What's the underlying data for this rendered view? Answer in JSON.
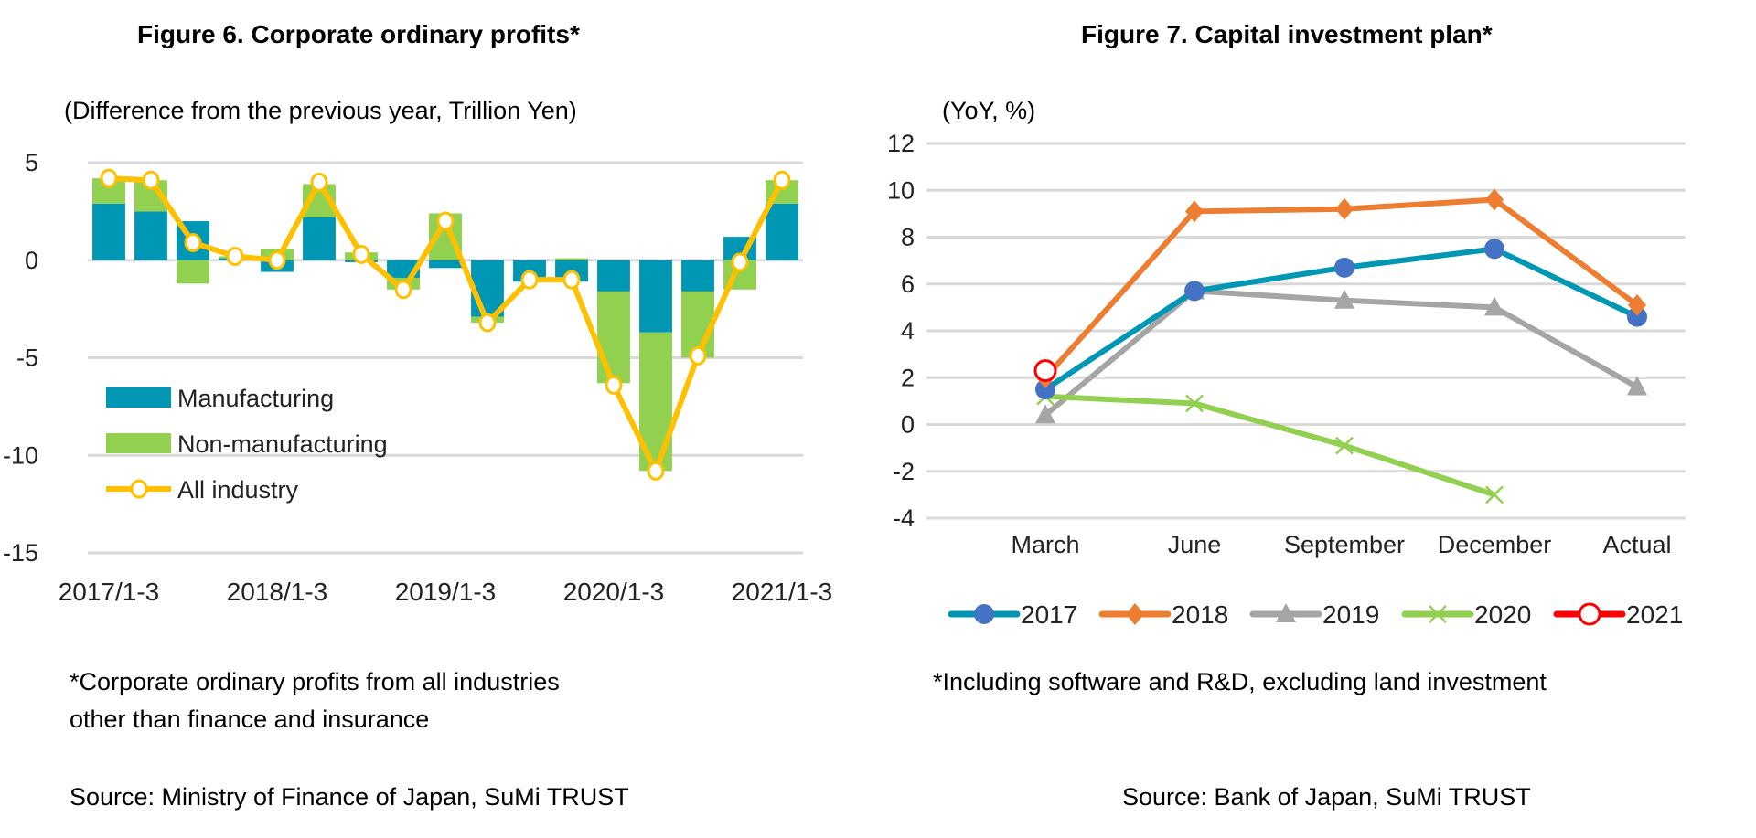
{
  "chart_data": [
    {
      "type": "bar",
      "stacked": true,
      "title": "Figure 6. Corporate ordinary profits*",
      "subtitle": "(Difference from the previous year, Trillion Yen)",
      "categories": [
        "2017/1-3",
        "2017/4-6",
        "2017/7-9",
        "2017/10-12",
        "2018/1-3",
        "2018/4-6",
        "2018/7-9",
        "2018/10-12",
        "2019/1-3",
        "2019/4-6",
        "2019/7-9",
        "2019/10-12",
        "2020/1-3",
        "2020/4-6",
        "2020/7-9",
        "2020/10-12",
        "2021/1-3"
      ],
      "tick_labels": [
        "2017/1-3",
        "2018/1-3",
        "2019/1-3",
        "2020/1-3",
        "2021/1-3"
      ],
      "ylim": [
        -15,
        5
      ],
      "yticks": [
        5,
        0,
        -5,
        -10,
        -15
      ],
      "grid": true,
      "legend_placement": "lower-left",
      "series": [
        {
          "name": "Manufacturing",
          "type": "bar",
          "color": "#0097B5",
          "values": [
            2.9,
            2.5,
            2.0,
            0.1,
            -0.6,
            2.2,
            -0.1,
            -0.9,
            -0.4,
            -2.9,
            -1.1,
            -1.1,
            -1.6,
            -3.7,
            -1.6,
            1.2,
            2.9
          ]
        },
        {
          "name": "Non-manufacturing",
          "type": "bar",
          "color": "#92D050",
          "values": [
            1.3,
            1.6,
            -1.2,
            0.1,
            0.6,
            1.7,
            0.4,
            -0.6,
            2.4,
            -0.3,
            0.0,
            0.1,
            -4.7,
            -7.1,
            -3.4,
            -1.5,
            1.2
          ]
        },
        {
          "name": "All industry",
          "type": "line",
          "color": "#FFC000",
          "values": [
            4.2,
            4.1,
            0.9,
            0.2,
            0.0,
            4.0,
            0.3,
            -1.5,
            2.0,
            -3.2,
            -1.0,
            -1.0,
            -6.4,
            -10.8,
            -4.9,
            -0.1,
            4.1
          ]
        }
      ],
      "footnote": [
        "*Corporate ordinary profits from all industries",
        "other than finance and insurance"
      ],
      "source": "Source: Ministry of Finance of Japan, SuMi TRUST"
    },
    {
      "type": "line",
      "title": "Figure 7. Capital investment plan*",
      "ylabel": "(YoY, %)",
      "categories": [
        "March",
        "June",
        "September",
        "December",
        "Actual"
      ],
      "ylim": [
        -4,
        12
      ],
      "yticks": [
        12,
        10,
        8,
        6,
        4,
        2,
        0,
        -2,
        -4
      ],
      "grid": true,
      "legend_placement": "bottom",
      "series": [
        {
          "name": "2017",
          "color": "#0097B5",
          "marker": "circle",
          "marker_color": "#4472C4",
          "values": [
            1.5,
            5.7,
            6.7,
            7.5,
            4.6
          ]
        },
        {
          "name": "2018",
          "color": "#ED7D31",
          "marker": "diamond",
          "values": [
            2.0,
            9.1,
            9.2,
            9.6,
            5.1
          ]
        },
        {
          "name": "2019",
          "color": "#A5A5A5",
          "marker": "triangle",
          "values": [
            0.4,
            5.7,
            5.3,
            5.0,
            1.6
          ]
        },
        {
          "name": "2020",
          "color": "#92D050",
          "marker": "x",
          "values": [
            1.2,
            0.9,
            -0.9,
            -3.0,
            null
          ]
        },
        {
          "name": "2021",
          "color": "#FF0000",
          "marker": "open-circle",
          "values": [
            2.3,
            null,
            null,
            null,
            null
          ]
        }
      ],
      "footnote": "*Including software and R&D, excluding land investment",
      "source": "Source: Bank of Japan, SuMi TRUST"
    }
  ]
}
